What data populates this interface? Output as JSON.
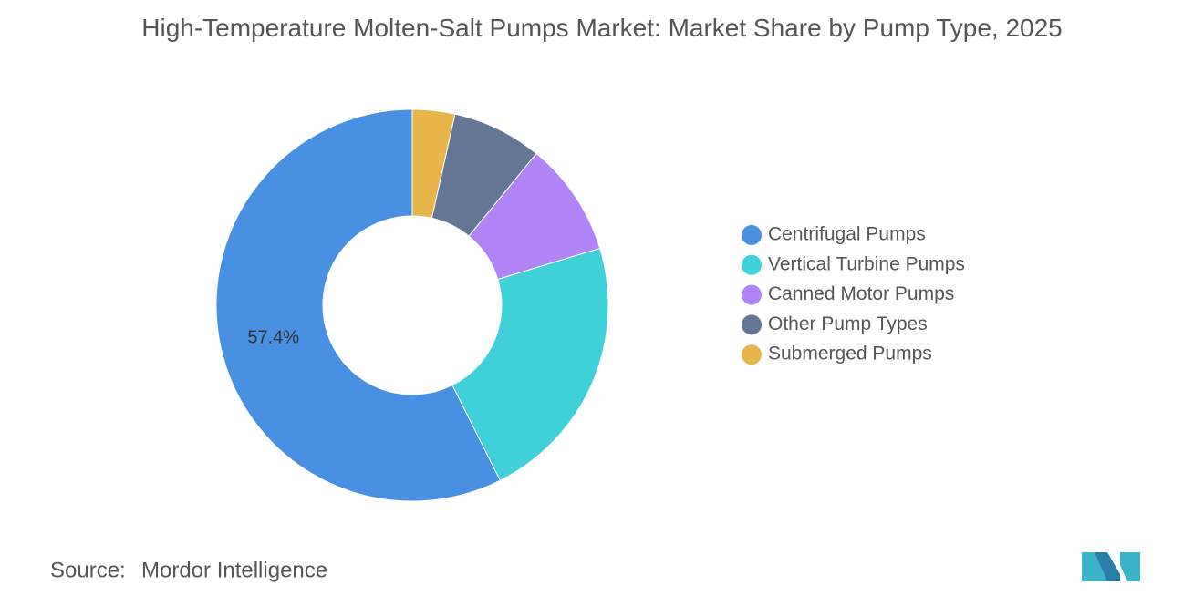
{
  "chart_data": {
    "type": "donut",
    "title": "High-Temperature Molten-Salt Pumps Market: Market Share by Pump Type, 2025",
    "categories": [
      "Centrifugal Pumps",
      "Vertical Turbine Pumps",
      "Canned Motor Pumps",
      "Other Pump Types",
      "Submerged Pumps"
    ],
    "values": [
      57.4,
      22.3,
      9.4,
      7.4,
      3.5
    ],
    "value_labels": [
      "57.4%",
      null,
      null,
      null,
      null
    ],
    "colors": [
      "#4a90e2",
      "#3fd0d9",
      "#b084f7",
      "#637696",
      "#e8b54a"
    ],
    "legend": "right"
  },
  "source": {
    "label": "Source:",
    "text": "Mordor Intelligence"
  }
}
